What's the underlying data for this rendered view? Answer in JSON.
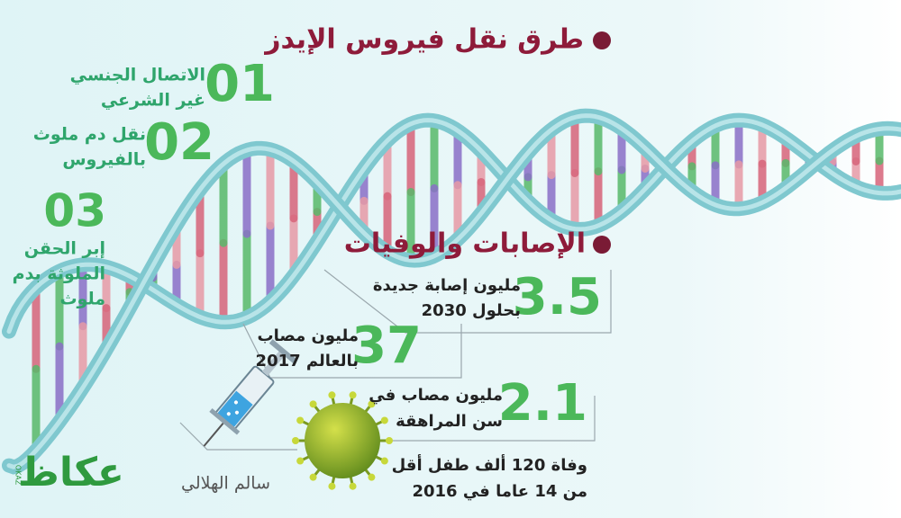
{
  "header": {
    "title": "طرق نقل فيروس الإيدز"
  },
  "transmission": {
    "items": [
      {
        "number": "01",
        "lines": [
          "الاتصال الجنسي",
          "غير الشرعي"
        ]
      },
      {
        "number": "02",
        "lines": [
          "نقل دم ملوث",
          "بالفيروس"
        ]
      },
      {
        "number": "03",
        "lines": [
          "إبر الحقن",
          "الملوثة بدم",
          "ملوث"
        ]
      }
    ]
  },
  "statistics": {
    "title": "الإصابات والوفيات",
    "items": [
      {
        "number": "3.5",
        "lines": [
          "مليون إصابة جديدة",
          "بحلول 2030"
        ]
      },
      {
        "number": "37",
        "lines": [
          "مليون مصاب",
          "بالعالم 2017"
        ]
      },
      {
        "number": "2.1",
        "lines": [
          "مليون مصاب في",
          "سن المراهقة"
        ]
      }
    ],
    "note": [
      "وفاة 120 ألف طفل أقل",
      "من 14 عاما في 2016"
    ]
  },
  "footer": {
    "author": "سالم الهلالي",
    "logo": "عكاظ",
    "logo_latin": "OKAZ"
  }
}
